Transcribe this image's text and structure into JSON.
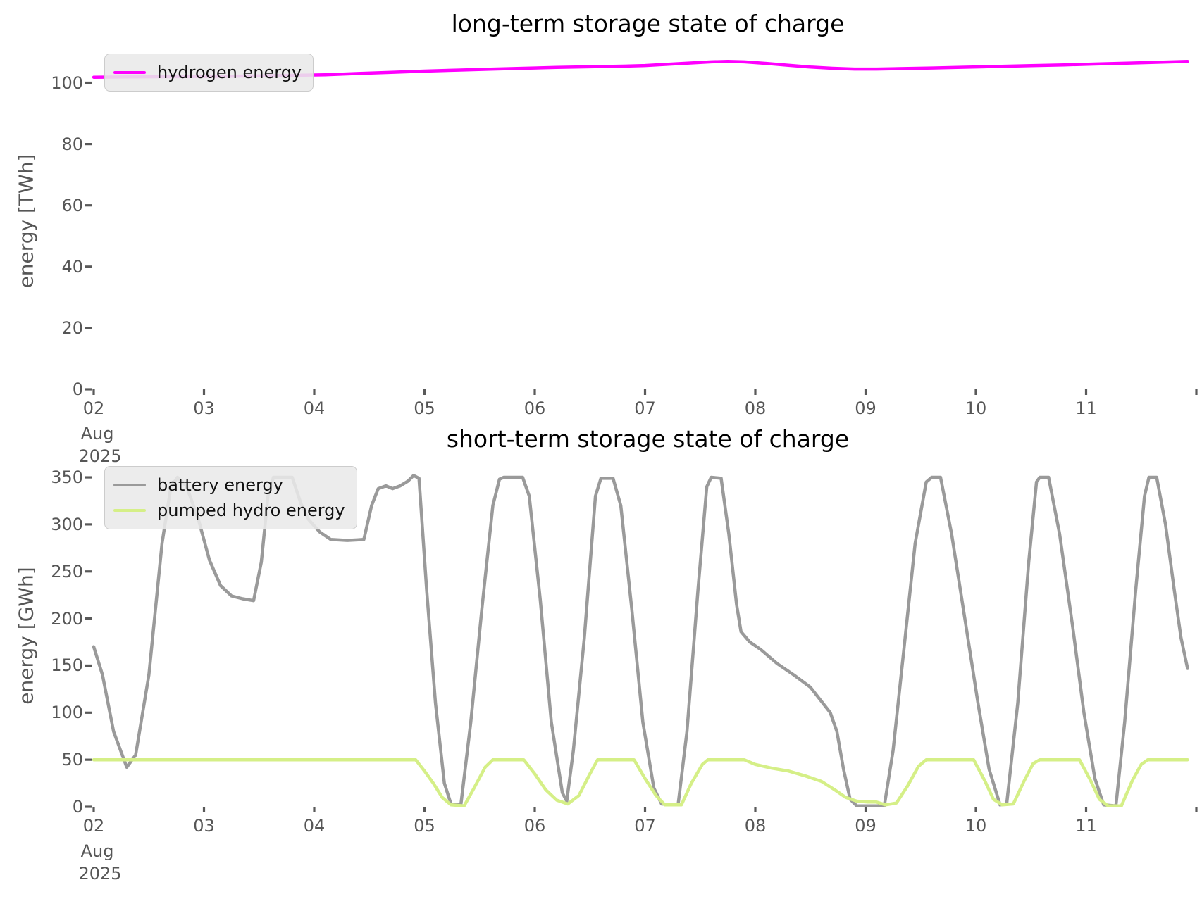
{
  "figure": {
    "background_color": "#ffffff",
    "text_color": "#565656",
    "title_color": "#000000"
  },
  "chart_data": [
    {
      "type": "line",
      "title": "long-term storage state of charge",
      "ylabel": "energy [TWh]",
      "xlabel": "",
      "x_unit": "day of August 2025",
      "x_range_days": [
        2,
        12
      ],
      "ylim": [
        0,
        110
      ],
      "yticks": [
        0,
        20,
        40,
        60,
        80,
        100
      ],
      "xticklabels": [
        "02",
        "03",
        "04",
        "05",
        "06",
        "07",
        "08",
        "09",
        "10",
        "11"
      ],
      "xtick_days": [
        2,
        3,
        4,
        5,
        6,
        7,
        8,
        9,
        10,
        11
      ],
      "month_label": "Aug",
      "year_label": "2025",
      "grid": false,
      "legend_position": "upper left",
      "series": [
        {
          "name": "hydrogen energy",
          "color": "#ff00ff",
          "points": [
            [
              2.0,
              101.8
            ],
            [
              2.3,
              101.9
            ],
            [
              2.6,
              101.95
            ],
            [
              2.9,
              102.0
            ],
            [
              3.2,
              102.1
            ],
            [
              3.5,
              102.25
            ],
            [
              3.8,
              102.4
            ],
            [
              4.1,
              102.6
            ],
            [
              4.4,
              103.0
            ],
            [
              4.7,
              103.4
            ],
            [
              5.0,
              103.8
            ],
            [
              5.3,
              104.1
            ],
            [
              5.6,
              104.4
            ],
            [
              5.9,
              104.7
            ],
            [
              6.2,
              105.0
            ],
            [
              6.5,
              105.2
            ],
            [
              6.8,
              105.4
            ],
            [
              7.0,
              105.6
            ],
            [
              7.2,
              106.0
            ],
            [
              7.4,
              106.4
            ],
            [
              7.6,
              106.8
            ],
            [
              7.75,
              106.95
            ],
            [
              7.9,
              106.8
            ],
            [
              8.1,
              106.3
            ],
            [
              8.3,
              105.7
            ],
            [
              8.5,
              105.1
            ],
            [
              8.7,
              104.7
            ],
            [
              8.9,
              104.45
            ],
            [
              9.1,
              104.45
            ],
            [
              9.3,
              104.6
            ],
            [
              9.6,
              104.8
            ],
            [
              9.9,
              105.05
            ],
            [
              10.2,
              105.3
            ],
            [
              10.5,
              105.55
            ],
            [
              10.8,
              105.8
            ],
            [
              11.1,
              106.1
            ],
            [
              11.4,
              106.4
            ],
            [
              11.7,
              106.7
            ],
            [
              11.92,
              106.95
            ]
          ]
        }
      ]
    },
    {
      "type": "line",
      "title": "short-term storage state of charge",
      "ylabel": "energy [GWh]",
      "xlabel": "",
      "x_unit": "day of August 2025",
      "x_range_days": [
        2,
        12
      ],
      "ylim": [
        0,
        370
      ],
      "yticks": [
        0,
        50,
        100,
        150,
        200,
        250,
        300,
        350
      ],
      "xticklabels": [
        "02",
        "03",
        "04",
        "05",
        "06",
        "07",
        "08",
        "09",
        "10",
        "11"
      ],
      "xtick_days": [
        2,
        3,
        4,
        5,
        6,
        7,
        8,
        9,
        10,
        11
      ],
      "month_label": "Aug",
      "year_label": "2025",
      "grid": false,
      "legend_position": "upper left",
      "series": [
        {
          "name": "battery energy",
          "color": "#9a9a9a",
          "points": [
            [
              2.0,
              170
            ],
            [
              2.08,
              140
            ],
            [
              2.18,
              80
            ],
            [
              2.3,
              42
            ],
            [
              2.38,
              55
            ],
            [
              2.5,
              140
            ],
            [
              2.62,
              280
            ],
            [
              2.7,
              340
            ],
            [
              2.76,
              350
            ],
            [
              2.84,
              341
            ],
            [
              2.95,
              305
            ],
            [
              3.05,
              262
            ],
            [
              3.15,
              235
            ],
            [
              3.25,
              224
            ],
            [
              3.35,
              221
            ],
            [
              3.45,
              219
            ],
            [
              3.52,
              260
            ],
            [
              3.58,
              330
            ],
            [
              3.63,
              350
            ],
            [
              3.8,
              350
            ],
            [
              3.88,
              322
            ],
            [
              3.95,
              305
            ],
            [
              4.05,
              292
            ],
            [
              4.15,
              284
            ],
            [
              4.3,
              283
            ],
            [
              4.45,
              284
            ],
            [
              4.52,
              320
            ],
            [
              4.58,
              338
            ],
            [
              4.65,
              341
            ],
            [
              4.71,
              338
            ],
            [
              4.78,
              341
            ],
            [
              4.85,
              346
            ],
            [
              4.9,
              352
            ],
            [
              4.95,
              349
            ],
            [
              5.02,
              230
            ],
            [
              5.1,
              110
            ],
            [
              5.18,
              25
            ],
            [
              5.24,
              3
            ],
            [
              5.33,
              2
            ],
            [
              5.42,
              90
            ],
            [
              5.52,
              210
            ],
            [
              5.62,
              320
            ],
            [
              5.68,
              348
            ],
            [
              5.72,
              350
            ],
            [
              5.89,
              350
            ],
            [
              5.95,
              330
            ],
            [
              6.05,
              220
            ],
            [
              6.15,
              90
            ],
            [
              6.25,
              15
            ],
            [
              6.29,
              6
            ],
            [
              6.35,
              60
            ],
            [
              6.45,
              180
            ],
            [
              6.55,
              330
            ],
            [
              6.6,
              349
            ],
            [
              6.71,
              349
            ],
            [
              6.78,
              320
            ],
            [
              6.88,
              210
            ],
            [
              6.98,
              90
            ],
            [
              7.08,
              20
            ],
            [
              7.15,
              3
            ],
            [
              7.3,
              2
            ],
            [
              7.38,
              80
            ],
            [
              7.48,
              230
            ],
            [
              7.56,
              340
            ],
            [
              7.6,
              350
            ],
            [
              7.69,
              349
            ],
            [
              7.76,
              290
            ],
            [
              7.83,
              215
            ],
            [
              7.87,
              186
            ],
            [
              7.95,
              175
            ],
            [
              8.05,
              167
            ],
            [
              8.2,
              152
            ],
            [
              8.35,
              140
            ],
            [
              8.5,
              127
            ],
            [
              8.6,
              112
            ],
            [
              8.68,
              100
            ],
            [
              8.74,
              80
            ],
            [
              8.8,
              40
            ],
            [
              8.86,
              8
            ],
            [
              8.92,
              1
            ],
            [
              9.17,
              1
            ],
            [
              9.25,
              60
            ],
            [
              9.35,
              170
            ],
            [
              9.45,
              280
            ],
            [
              9.55,
              345
            ],
            [
              9.6,
              350
            ],
            [
              9.68,
              350
            ],
            [
              9.78,
              290
            ],
            [
              9.9,
              200
            ],
            [
              10.02,
              110
            ],
            [
              10.12,
              40
            ],
            [
              10.22,
              2
            ],
            [
              10.28,
              3
            ],
            [
              10.38,
              110
            ],
            [
              10.48,
              260
            ],
            [
              10.55,
              345
            ],
            [
              10.58,
              350
            ],
            [
              10.66,
              350
            ],
            [
              10.76,
              290
            ],
            [
              10.88,
              190
            ],
            [
              10.98,
              100
            ],
            [
              11.08,
              30
            ],
            [
              11.16,
              2
            ],
            [
              11.27,
              1
            ],
            [
              11.35,
              90
            ],
            [
              11.45,
              230
            ],
            [
              11.53,
              330
            ],
            [
              11.57,
              350
            ],
            [
              11.64,
              350
            ],
            [
              11.72,
              300
            ],
            [
              11.8,
              230
            ],
            [
              11.86,
              180
            ],
            [
              11.92,
              147
            ]
          ]
        },
        {
          "name": "pumped hydro energy",
          "color": "#d5ef87",
          "points": [
            [
              2.0,
              50
            ],
            [
              4.92,
              50
            ],
            [
              5.0,
              38
            ],
            [
              5.08,
              25
            ],
            [
              5.16,
              10
            ],
            [
              5.24,
              2
            ],
            [
              5.36,
              1
            ],
            [
              5.45,
              20
            ],
            [
              5.55,
              42
            ],
            [
              5.62,
              50
            ],
            [
              5.9,
              50
            ],
            [
              6.0,
              35
            ],
            [
              6.1,
              18
            ],
            [
              6.2,
              7
            ],
            [
              6.3,
              3
            ],
            [
              6.4,
              12
            ],
            [
              6.5,
              35
            ],
            [
              6.57,
              50
            ],
            [
              6.9,
              50
            ],
            [
              7.0,
              30
            ],
            [
              7.1,
              12
            ],
            [
              7.18,
              2
            ],
            [
              7.33,
              2
            ],
            [
              7.42,
              25
            ],
            [
              7.52,
              45
            ],
            [
              7.57,
              50
            ],
            [
              7.9,
              50
            ],
            [
              8.0,
              45
            ],
            [
              8.15,
              41
            ],
            [
              8.3,
              38
            ],
            [
              8.45,
              33
            ],
            [
              8.6,
              27
            ],
            [
              8.72,
              18
            ],
            [
              8.82,
              10
            ],
            [
              8.92,
              6
            ],
            [
              9.02,
              5
            ],
            [
              9.1,
              5
            ],
            [
              9.18,
              2
            ],
            [
              9.28,
              4
            ],
            [
              9.38,
              22
            ],
            [
              9.48,
              43
            ],
            [
              9.55,
              50
            ],
            [
              9.98,
              50
            ],
            [
              10.08,
              28
            ],
            [
              10.16,
              8
            ],
            [
              10.24,
              2
            ],
            [
              10.34,
              3
            ],
            [
              10.44,
              28
            ],
            [
              10.52,
              46
            ],
            [
              10.58,
              50
            ],
            [
              10.94,
              50
            ],
            [
              11.04,
              28
            ],
            [
              11.12,
              8
            ],
            [
              11.2,
              1
            ],
            [
              11.32,
              1
            ],
            [
              11.42,
              28
            ],
            [
              11.5,
              45
            ],
            [
              11.56,
              50
            ],
            [
              11.92,
              50
            ]
          ]
        }
      ]
    }
  ]
}
